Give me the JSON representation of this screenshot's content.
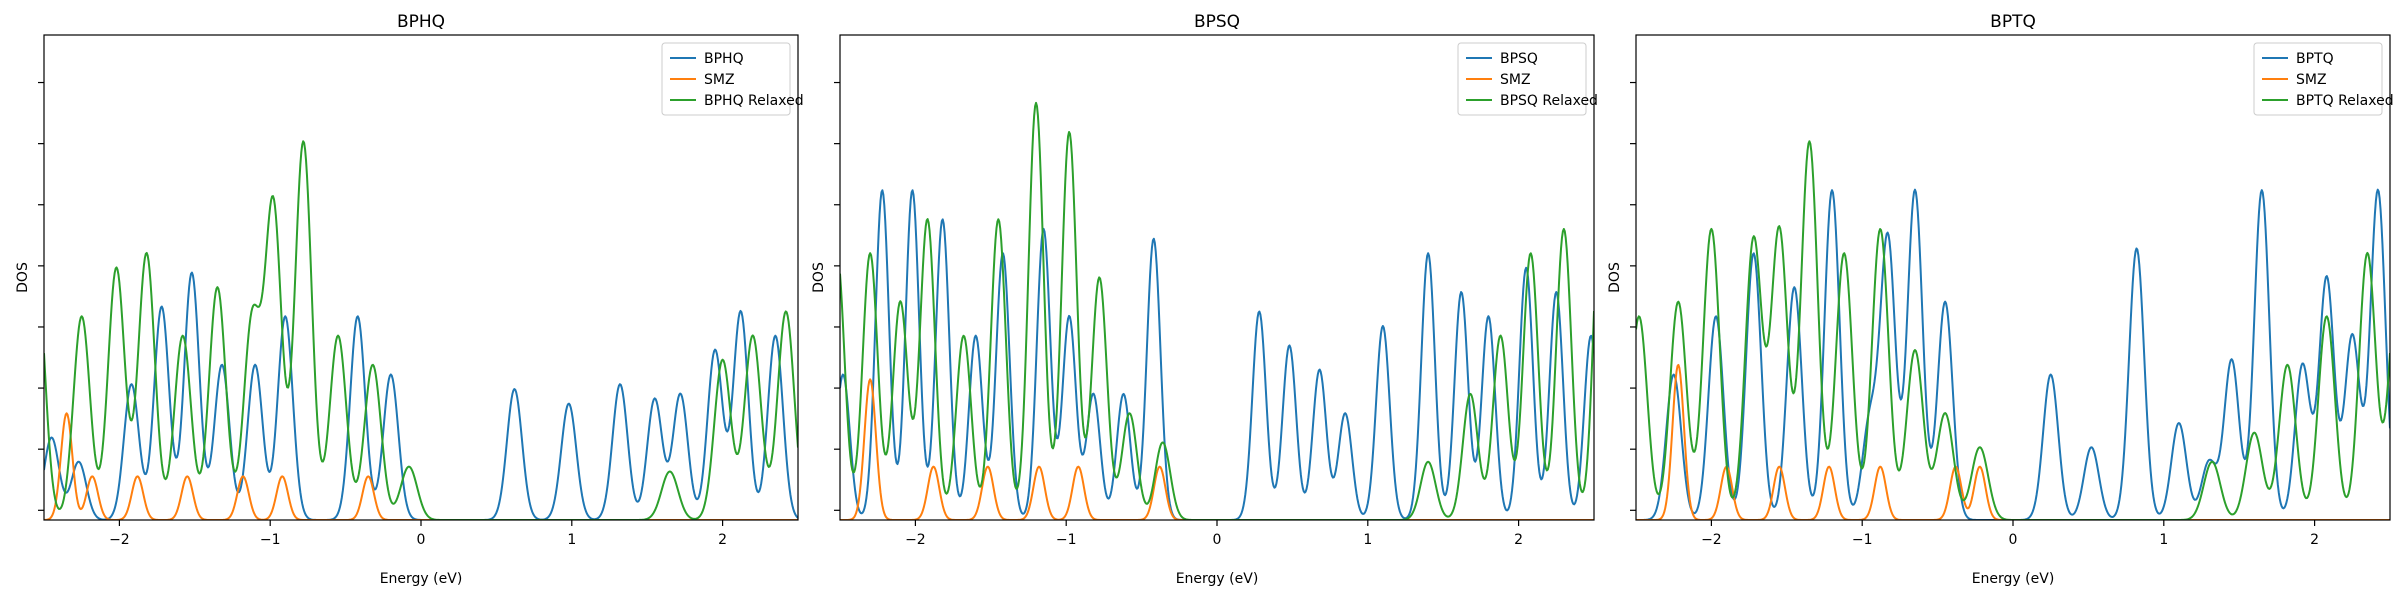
{
  "chart_data": [
    {
      "type": "line",
      "title": "BPHQ",
      "xlabel": "Energy (eV)",
      "ylabel": "DOS",
      "xlim": [
        -2.5,
        2.5
      ],
      "ylim": [
        0,
        1
      ],
      "xticks": [
        -2,
        -1,
        0,
        1,
        2
      ],
      "grid": false,
      "legend": "top-right",
      "series": [
        {
          "name": "BPHQ",
          "color": "#1f77b4",
          "width": 0.05,
          "peaks": [
            [
              -2.45,
              0.17
            ],
            [
              -2.27,
              0.12
            ],
            [
              -1.92,
              0.28
            ],
            [
              -1.72,
              0.44
            ],
            [
              -1.52,
              0.51
            ],
            [
              -1.32,
              0.32
            ],
            [
              -1.1,
              0.32
            ],
            [
              -0.9,
              0.42
            ],
            [
              -0.42,
              0.42
            ],
            [
              -0.2,
              0.3
            ],
            [
              0.62,
              0.27
            ],
            [
              0.98,
              0.24
            ],
            [
              1.32,
              0.28
            ],
            [
              1.55,
              0.25
            ],
            [
              1.72,
              0.26
            ],
            [
              1.95,
              0.35
            ],
            [
              2.12,
              0.43
            ],
            [
              2.35,
              0.38
            ]
          ]
        },
        {
          "name": "SMZ",
          "color": "#ff7f0e",
          "width": 0.038,
          "peaks": [
            [
              -2.35,
              0.22
            ],
            [
              -2.18,
              0.09
            ],
            [
              -1.88,
              0.09
            ],
            [
              -1.55,
              0.09
            ],
            [
              -1.18,
              0.09
            ],
            [
              -0.92,
              0.09
            ],
            [
              -0.35,
              0.09
            ]
          ]
        },
        {
          "name": "BPHQ Relaxed",
          "color": "#2ca02c",
          "width": 0.055,
          "peaks": [
            [
              -2.55,
              0.52
            ],
            [
              -2.25,
              0.42
            ],
            [
              -2.02,
              0.52
            ],
            [
              -1.82,
              0.55
            ],
            [
              -1.58,
              0.38
            ],
            [
              -1.35,
              0.48
            ],
            [
              -1.12,
              0.41
            ],
            [
              -0.98,
              0.65
            ],
            [
              -0.78,
              0.78
            ],
            [
              -0.55,
              0.38
            ],
            [
              -0.32,
              0.32
            ],
            [
              -0.08,
              0.11
            ],
            [
              1.65,
              0.1
            ],
            [
              2.0,
              0.33
            ],
            [
              2.2,
              0.38
            ],
            [
              2.42,
              0.43
            ]
          ]
        }
      ]
    },
    {
      "type": "line",
      "title": "BPSQ",
      "xlabel": "Energy (eV)",
      "ylabel": "DOS",
      "xlim": [
        -2.5,
        2.5
      ],
      "ylim": [
        0,
        1
      ],
      "xticks": [
        -2,
        -1,
        0,
        1,
        2
      ],
      "grid": false,
      "legend": "top-right",
      "series": [
        {
          "name": "BPSQ",
          "color": "#1f77b4",
          "width": 0.045,
          "peaks": [
            [
              -2.48,
              0.3
            ],
            [
              -2.22,
              0.68
            ],
            [
              -2.02,
              0.68
            ],
            [
              -1.82,
              0.62
            ],
            [
              -1.6,
              0.38
            ],
            [
              -1.42,
              0.55
            ],
            [
              -1.15,
              0.6
            ],
            [
              -0.98,
              0.42
            ],
            [
              -0.82,
              0.26
            ],
            [
              -0.62,
              0.26
            ],
            [
              -0.42,
              0.58
            ],
            [
              0.28,
              0.43
            ],
            [
              0.48,
              0.36
            ],
            [
              0.68,
              0.31
            ],
            [
              0.85,
              0.22
            ],
            [
              1.1,
              0.4
            ],
            [
              1.4,
              0.55
            ],
            [
              1.62,
              0.47
            ],
            [
              1.8,
              0.42
            ],
            [
              2.05,
              0.52
            ],
            [
              2.25,
              0.47
            ],
            [
              2.48,
              0.38
            ]
          ]
        },
        {
          "name": "SMZ",
          "color": "#ff7f0e",
          "width": 0.038,
          "peaks": [
            [
              -2.3,
              0.29
            ],
            [
              -1.88,
              0.11
            ],
            [
              -1.52,
              0.11
            ],
            [
              -1.18,
              0.11
            ],
            [
              -0.92,
              0.11
            ],
            [
              -0.38,
              0.11
            ]
          ]
        },
        {
          "name": "BPSQ Relaxed",
          "color": "#2ca02c",
          "width": 0.05,
          "peaks": [
            [
              -2.52,
              0.55
            ],
            [
              -2.3,
              0.55
            ],
            [
              -2.1,
              0.45
            ],
            [
              -1.92,
              0.62
            ],
            [
              -1.68,
              0.38
            ],
            [
              -1.45,
              0.62
            ],
            [
              -1.2,
              0.86
            ],
            [
              -0.98,
              0.8
            ],
            [
              -0.78,
              0.5
            ],
            [
              -0.58,
              0.22
            ],
            [
              -0.36,
              0.16
            ],
            [
              1.4,
              0.12
            ],
            [
              1.68,
              0.26
            ],
            [
              1.88,
              0.38
            ],
            [
              2.08,
              0.55
            ],
            [
              2.3,
              0.6
            ],
            [
              2.55,
              0.71
            ]
          ]
        }
      ]
    },
    {
      "type": "line",
      "title": "BPTQ",
      "xlabel": "Energy (eV)",
      "ylabel": "DOS",
      "xlim": [
        -2.5,
        2.5
      ],
      "ylim": [
        0,
        1
      ],
      "xticks": [
        -2,
        -1,
        0,
        1,
        2
      ],
      "grid": false,
      "legend": "top-right",
      "series": [
        {
          "name": "BPTQ",
          "color": "#1f77b4",
          "width": 0.05,
          "peaks": [
            [
              -2.25,
              0.3
            ],
            [
              -1.97,
              0.42
            ],
            [
              -1.72,
              0.55
            ],
            [
              -1.45,
              0.48
            ],
            [
              -1.2,
              0.68
            ],
            [
              -0.95,
              0.2
            ],
            [
              -0.83,
              0.58
            ],
            [
              -0.65,
              0.68
            ],
            [
              -0.45,
              0.45
            ],
            [
              0.25,
              0.3
            ],
            [
              0.52,
              0.15
            ],
            [
              0.82,
              0.56
            ],
            [
              1.1,
              0.2
            ],
            [
              1.3,
              0.12
            ],
            [
              1.45,
              0.33
            ],
            [
              1.65,
              0.68
            ],
            [
              1.92,
              0.32
            ],
            [
              2.08,
              0.5
            ],
            [
              2.25,
              0.38
            ],
            [
              2.42,
              0.68
            ]
          ]
        },
        {
          "name": "SMZ",
          "color": "#ff7f0e",
          "width": 0.038,
          "peaks": [
            [
              -2.22,
              0.32
            ],
            [
              -1.9,
              0.11
            ],
            [
              -1.55,
              0.11
            ],
            [
              -1.22,
              0.11
            ],
            [
              -0.88,
              0.11
            ],
            [
              -0.38,
              0.11
            ],
            [
              -0.22,
              0.11
            ]
          ]
        },
        {
          "name": "BPTQ Relaxed",
          "color": "#2ca02c",
          "width": 0.055,
          "peaks": [
            [
              -2.48,
              0.42
            ],
            [
              -2.22,
              0.45
            ],
            [
              -2.0,
              0.6
            ],
            [
              -1.72,
              0.58
            ],
            [
              -1.55,
              0.6
            ],
            [
              -1.35,
              0.78
            ],
            [
              -1.12,
              0.55
            ],
            [
              -0.88,
              0.6
            ],
            [
              -0.65,
              0.35
            ],
            [
              -0.45,
              0.22
            ],
            [
              -0.22,
              0.15
            ],
            [
              1.32,
              0.12
            ],
            [
              1.6,
              0.18
            ],
            [
              1.82,
              0.32
            ],
            [
              2.08,
              0.42
            ],
            [
              2.35,
              0.55
            ],
            [
              2.55,
              0.5
            ]
          ]
        }
      ]
    }
  ]
}
